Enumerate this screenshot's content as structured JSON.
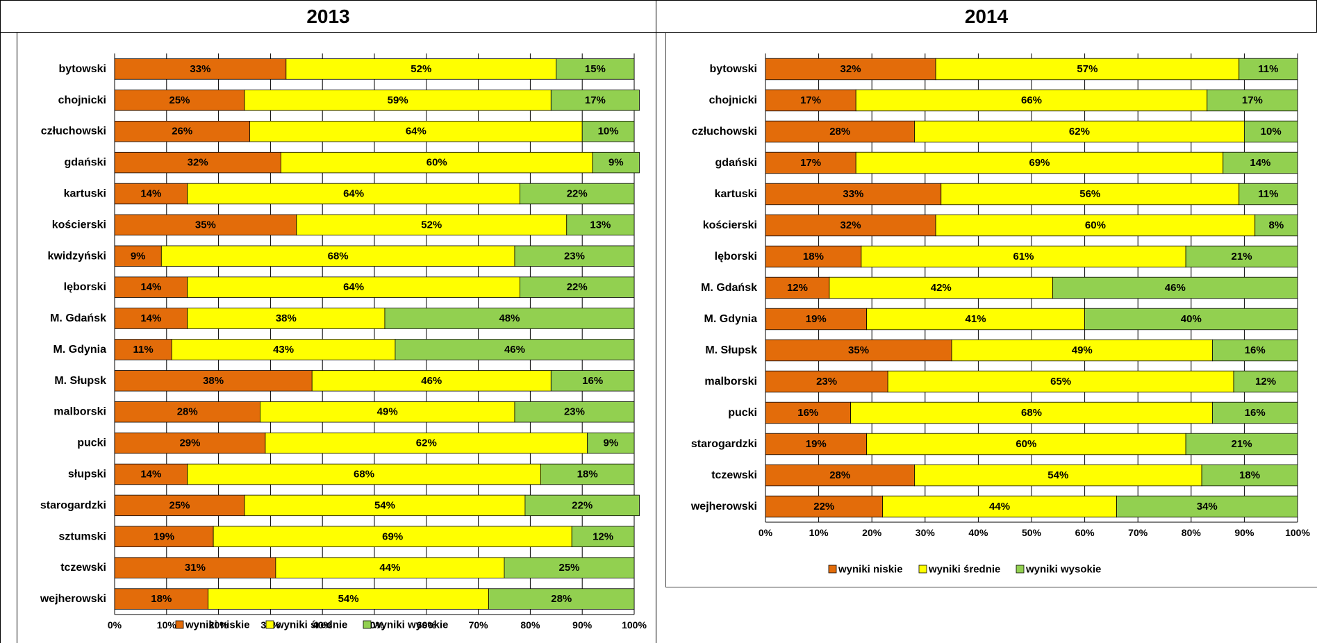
{
  "headers": {
    "left": "2013",
    "right": "2014"
  },
  "colors": {
    "niskie": "#e36c0a",
    "srednie": "#ffff00",
    "wysokie": "#92d050"
  },
  "chart_data": [
    {
      "type": "bar",
      "orientation": "horizontal",
      "stacked": true,
      "percent": true,
      "title": "2013",
      "categories": [
        "bytowski",
        "chojnicki",
        "człuchowski",
        "gdański",
        "kartuski",
        "kościerski",
        "kwidzyński",
        "lęborski",
        "M. Gdańsk",
        "M. Gdynia",
        "M. Słupsk",
        "malborski",
        "pucki",
        "słupski",
        "starogardzki",
        "sztumski",
        "tczewski",
        "wejherowski"
      ],
      "series": [
        {
          "name": "wyniki niskie",
          "values": [
            33,
            25,
            26,
            32,
            14,
            35,
            9,
            14,
            14,
            11,
            38,
            28,
            29,
            14,
            25,
            19,
            31,
            18
          ]
        },
        {
          "name": "wyniki  średnie",
          "values": [
            52,
            59,
            64,
            60,
            64,
            52,
            68,
            64,
            38,
            43,
            46,
            49,
            62,
            68,
            54,
            69,
            44,
            54
          ]
        },
        {
          "name": "wyniki wysokie",
          "values": [
            15,
            17,
            10,
            9,
            22,
            13,
            23,
            22,
            48,
            46,
            16,
            23,
            9,
            18,
            22,
            12,
            25,
            28
          ]
        }
      ],
      "xlim": [
        0,
        100
      ],
      "xticks": [
        "0%",
        "10%",
        "20%",
        "30%",
        "40%",
        "50%",
        "60%",
        "70%",
        "80%",
        "90%",
        "100%"
      ],
      "grid": true,
      "legend": "bottom"
    },
    {
      "type": "bar",
      "orientation": "horizontal",
      "stacked": true,
      "percent": true,
      "title": "2014",
      "categories": [
        "bytowski",
        "chojnicki",
        "człuchowski",
        "gdański",
        "kartuski",
        "kościerski",
        "lęborski",
        "M. Gdańsk",
        "M. Gdynia",
        "M. Słupsk",
        "malborski",
        "pucki",
        "starogardzki",
        "tczewski",
        "wejherowski"
      ],
      "series": [
        {
          "name": "wyniki niskie",
          "values": [
            32,
            17,
            28,
            17,
            33,
            32,
            18,
            12,
            19,
            35,
            23,
            16,
            19,
            28,
            22
          ]
        },
        {
          "name": "wyniki  średnie",
          "values": [
            57,
            66,
            62,
            69,
            56,
            60,
            61,
            42,
            41,
            49,
            65,
            68,
            60,
            54,
            44
          ]
        },
        {
          "name": "wyniki wysokie",
          "values": [
            11,
            17,
            10,
            14,
            11,
            8,
            21,
            46,
            40,
            16,
            12,
            16,
            21,
            18,
            34
          ]
        }
      ],
      "xlim": [
        0,
        100
      ],
      "xticks": [
        "0%",
        "10%",
        "20%",
        "30%",
        "40%",
        "50%",
        "60%",
        "70%",
        "80%",
        "90%",
        "100%"
      ],
      "grid": true,
      "legend": "bottom"
    }
  ]
}
